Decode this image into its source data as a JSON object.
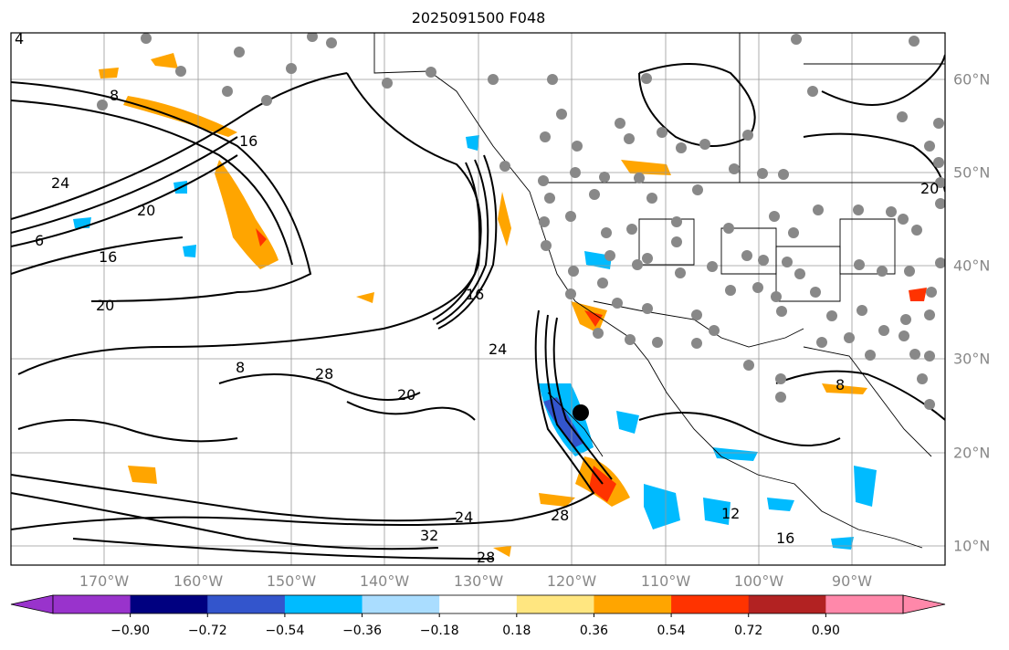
{
  "title": "2025091500 F048",
  "lon_labels": [
    "170°W",
    "160°W",
    "150°W",
    "140°W",
    "130°W",
    "120°W",
    "110°W",
    "100°W",
    "90°W"
  ],
  "lat_labels": [
    "60°N",
    "50°N",
    "40°N",
    "30°N",
    "20°N",
    "10°N"
  ],
  "colorbar": {
    "ticks": [
      "−0.90",
      "−0.72",
      "−0.54",
      "−0.36",
      "−0.18",
      "0.18",
      "0.36",
      "0.54",
      "0.72",
      "0.90"
    ],
    "colors": [
      "#9933cc",
      "#000080",
      "#3355cc",
      "#00bbff",
      "#aaddff",
      "#ffffff",
      "#ffe680",
      "#ffa500",
      "#ff3300",
      "#b22222",
      "#ff88aa"
    ]
  },
  "contour_labels": [
    "4",
    "8",
    "16",
    "24",
    "20",
    "6",
    "16",
    "20",
    "16",
    "24",
    "8",
    "20",
    "28",
    "28",
    "24",
    "32",
    "28",
    "12",
    "16",
    "20",
    "8"
  ],
  "colors": {
    "fill_orange": "#ffa500",
    "fill_red": "#ff3300",
    "fill_blue": "#00bbff",
    "fill_darkblue": "#3355cc",
    "fill_lightblue": "#aaddff",
    "station": "#888888"
  }
}
